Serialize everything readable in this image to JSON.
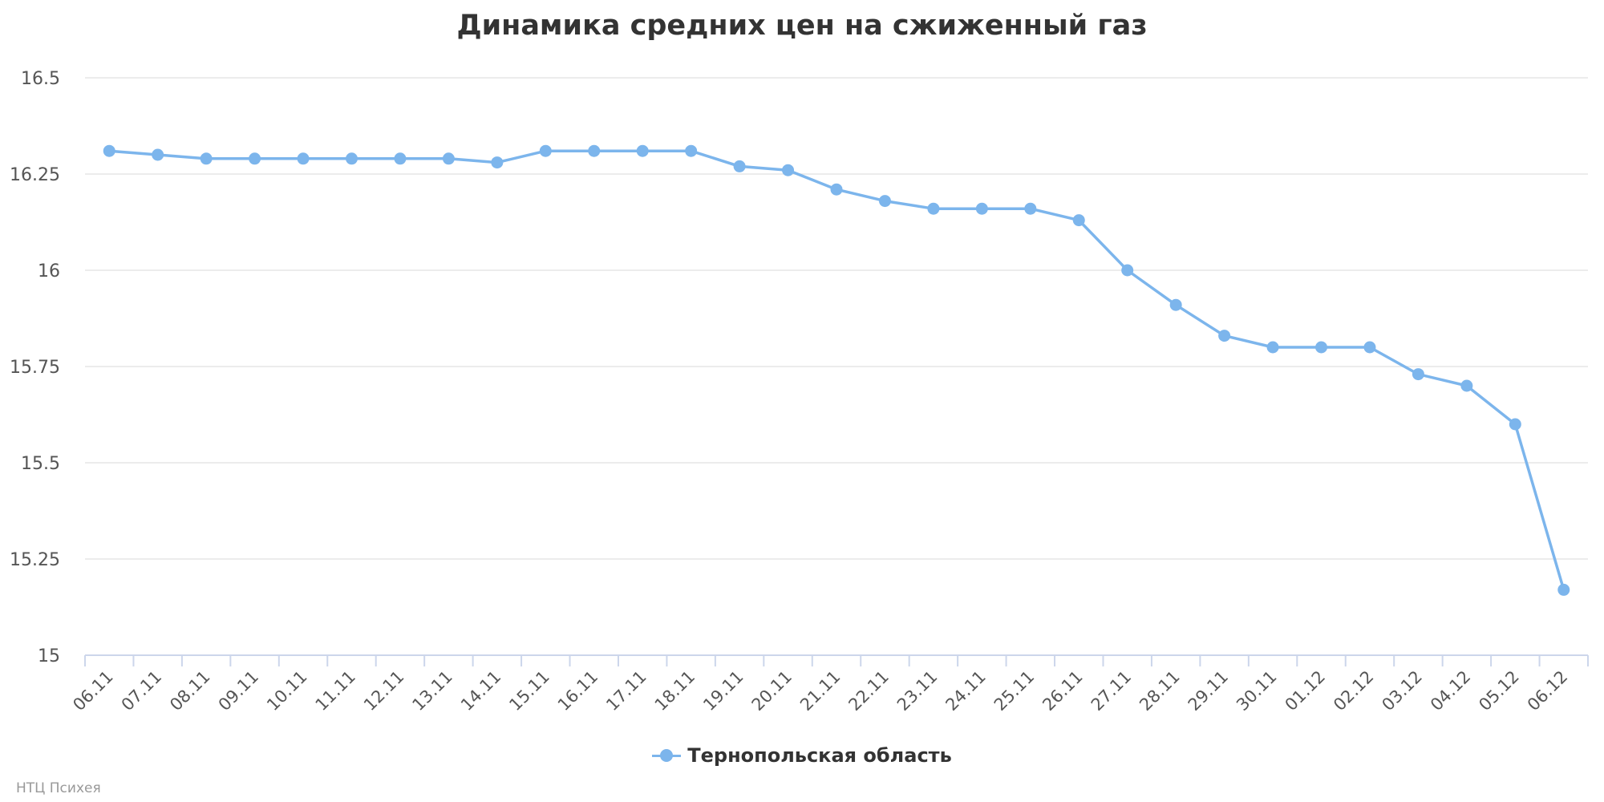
{
  "chart_data": {
    "type": "line",
    "title": "Динамика средних цен на сжиженный газ",
    "categories": [
      "06.11",
      "07.11",
      "08.11",
      "09.11",
      "10.11",
      "11.11",
      "12.11",
      "13.11",
      "14.11",
      "15.11",
      "16.11",
      "17.11",
      "18.11",
      "19.11",
      "20.11",
      "21.11",
      "22.11",
      "23.11",
      "24.11",
      "25.11",
      "26.11",
      "27.11",
      "28.11",
      "29.11",
      "30.11",
      "01.12",
      "02.12",
      "03.12",
      "04.12",
      "05.12",
      "06.12"
    ],
    "series": [
      {
        "name": "Тернопольская область",
        "color": "#7cb5ec",
        "values": [
          16.31,
          16.3,
          16.29,
          16.29,
          16.29,
          16.29,
          16.29,
          16.29,
          16.28,
          16.31,
          16.31,
          16.31,
          16.31,
          16.27,
          16.26,
          16.21,
          16.18,
          16.16,
          16.16,
          16.16,
          16.13,
          16.0,
          15.91,
          15.83,
          15.8,
          15.8,
          15.8,
          15.73,
          15.7,
          15.6,
          15.17
        ]
      }
    ],
    "ylim": [
      15,
      16.5
    ],
    "yticks": [
      "15",
      "15.25",
      "15.5",
      "15.75",
      "16",
      "16.25",
      "16.5"
    ],
    "grid": true,
    "legend_position": "bottom-center",
    "credits": "НТЦ Психея",
    "gridline_color": "#e6e6e6",
    "axis_color": "#ccd6eb"
  }
}
